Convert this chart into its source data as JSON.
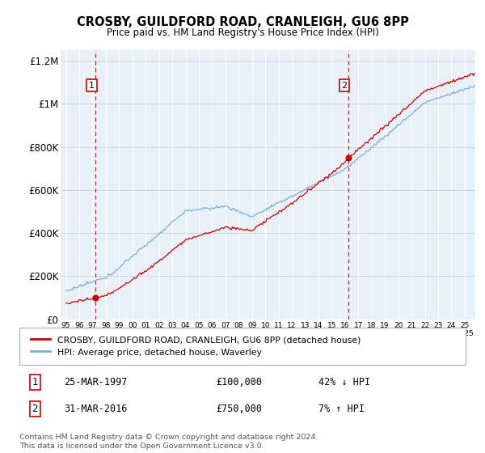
{
  "title": "CROSBY, GUILDFORD ROAD, CRANLEIGH, GU6 8PP",
  "subtitle": "Price paid vs. HM Land Registry's House Price Index (HPI)",
  "sale1_date": 1997.23,
  "sale1_price": 100000,
  "sale2_date": 2016.25,
  "sale2_price": 750000,
  "red_line_color": "#cc0000",
  "blue_line_color": "#7bafd4",
  "plot_bg": "#e8f0f8",
  "ylim_max": 1250000,
  "ylabel_ticks": [
    0,
    200000,
    400000,
    600000,
    800000,
    1000000,
    1200000
  ],
  "ylabel_labels": [
    "£0",
    "£200K",
    "£400K",
    "£600K",
    "£800K",
    "£1M",
    "£1.2M"
  ],
  "footer": "Contains HM Land Registry data © Crown copyright and database right 2024.\nThis data is licensed under the Open Government Licence v3.0.",
  "legend_line1": "CROSBY, GUILDFORD ROAD, CRANLEIGH, GU6 8PP (detached house)",
  "legend_line2": "HPI: Average price, detached house, Waverley",
  "table_row1_date": "25-MAR-1997",
  "table_row1_price": "£100,000",
  "table_row1_hpi": "42% ↓ HPI",
  "table_row2_date": "31-MAR-2016",
  "table_row2_price": "£750,000",
  "table_row2_hpi": "7% ↑ HPI"
}
